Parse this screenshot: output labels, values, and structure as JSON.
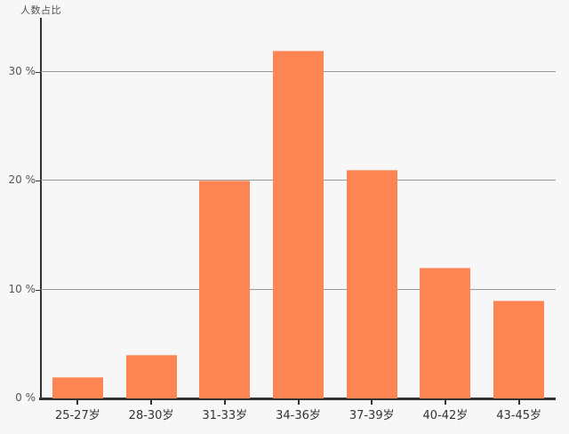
{
  "chart_data": {
    "type": "bar",
    "title": "",
    "ylabel": "人数占比",
    "xlabel": "",
    "categories": [
      "25-27岁",
      "28-30岁",
      "31-33岁",
      "34-36岁",
      "37-39岁",
      "40-42岁",
      "43-45岁"
    ],
    "values": [
      2,
      4,
      20,
      32,
      21,
      12,
      9
    ],
    "y_ticks": [
      {
        "value": 0,
        "label": "0 %"
      },
      {
        "value": 10,
        "label": "10 %"
      },
      {
        "value": 20,
        "label": "20 %"
      },
      {
        "value": 30,
        "label": "30 %"
      }
    ],
    "ylim": [
      0,
      35
    ],
    "grid": true,
    "legend": "none",
    "bar_color": "#fd8553",
    "background_color": "#f7f7f7",
    "axis_color": "#333333",
    "grid_color": "#999999",
    "label_color": "#555555",
    "x_label_color": "#333333"
  }
}
